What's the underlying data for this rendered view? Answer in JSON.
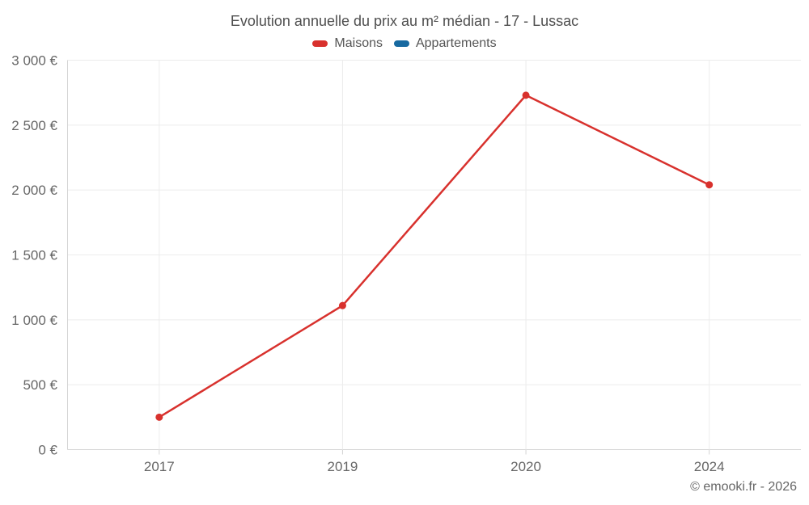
{
  "chart_data": {
    "type": "line",
    "title": "Evolution annuelle du prix au m² médian - 17 - Lussac",
    "categories": [
      "2017",
      "2019",
      "2020",
      "2024"
    ],
    "series": [
      {
        "name": "Maisons",
        "color": "#d8312d",
        "values": [
          250,
          1110,
          2730,
          2040
        ]
      },
      {
        "name": "Appartements",
        "color": "#1769a0",
        "values": [
          null,
          null,
          null,
          null
        ]
      }
    ],
    "ylim": [
      0,
      3000
    ],
    "y_ticks": [
      {
        "value": 0,
        "label": "0 €"
      },
      {
        "value": 500,
        "label": "500 €"
      },
      {
        "value": 1000,
        "label": "1 000 €"
      },
      {
        "value": 1500,
        "label": "1 500 €"
      },
      {
        "value": 2000,
        "label": "2 000 €"
      },
      {
        "value": 2500,
        "label": "2 500 €"
      },
      {
        "value": 3000,
        "label": "3 000 €"
      }
    ],
    "grid": true,
    "legend_position": "top",
    "unit": "€"
  },
  "footer": {
    "copyright": "© emooki.fr - 2026"
  }
}
